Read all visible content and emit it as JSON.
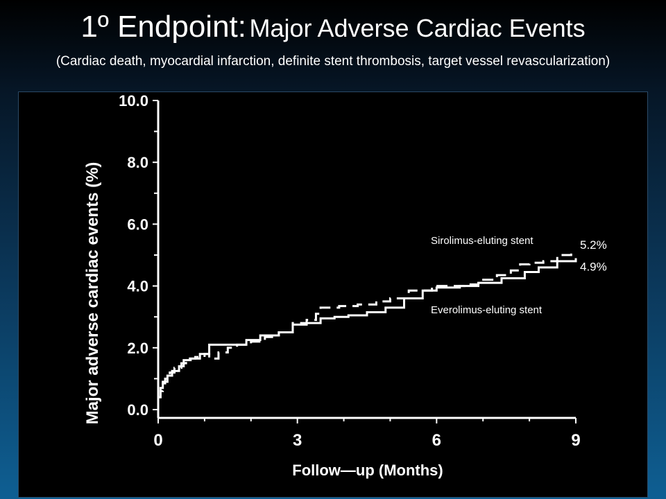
{
  "header": {
    "title_main": "1º Endpoint:",
    "title_rest": "Major Adverse Cardiac Events",
    "subtitle": "(Cardiac death, myocardial infarction, definite stent thrombosis, target vessel revascularization)"
  },
  "chart_data": {
    "type": "line",
    "xlabel": "Follow—up (Months)",
    "ylabel": "Major adverse cardiac events (%)",
    "xlim": [
      0,
      9
    ],
    "ylim": [
      0,
      10
    ],
    "x_ticks": [
      "0",
      "3",
      "6",
      "9"
    ],
    "y_ticks": [
      "0.0",
      "2.0",
      "4.0",
      "6.0",
      "8.0",
      "10.0"
    ],
    "series": [
      {
        "name": "Sirolimus-eluting stent",
        "end_label": "5.2%",
        "style": "dashed",
        "color": "#ffffff",
        "points": [
          [
            0,
            0.4
          ],
          [
            0.05,
            0.6
          ],
          [
            0.1,
            0.85
          ],
          [
            0.15,
            1.0
          ],
          [
            0.25,
            1.2
          ],
          [
            0.35,
            1.35
          ],
          [
            0.5,
            1.5
          ],
          [
            0.6,
            1.65
          ],
          [
            0.8,
            1.7
          ],
          [
            1.0,
            1.8
          ],
          [
            1.1,
            1.65
          ],
          [
            1.3,
            1.85
          ],
          [
            1.5,
            2.0
          ],
          [
            1.7,
            2.1
          ],
          [
            2.0,
            2.2
          ],
          [
            2.3,
            2.35
          ],
          [
            2.6,
            2.5
          ],
          [
            2.9,
            2.8
          ],
          [
            3.2,
            2.9
          ],
          [
            3.4,
            3.1
          ],
          [
            3.5,
            3.3
          ],
          [
            3.9,
            3.35
          ],
          [
            4.3,
            3.4
          ],
          [
            4.7,
            3.5
          ],
          [
            5.0,
            3.6
          ],
          [
            5.4,
            3.85
          ],
          [
            5.9,
            4.0
          ],
          [
            6.3,
            4.0
          ],
          [
            6.6,
            4.05
          ],
          [
            6.9,
            4.2
          ],
          [
            7.3,
            4.35
          ],
          [
            7.6,
            4.5
          ],
          [
            7.8,
            4.7
          ],
          [
            8.0,
            4.75
          ],
          [
            8.3,
            4.8
          ],
          [
            8.6,
            5.0
          ],
          [
            8.9,
            5.2
          ]
        ]
      },
      {
        "name": "Everolimus-eluting stent",
        "end_label": "4.9%",
        "style": "solid",
        "color": "#ffffff",
        "points": [
          [
            0,
            0.4
          ],
          [
            0.05,
            0.7
          ],
          [
            0.1,
            0.9
          ],
          [
            0.2,
            1.1
          ],
          [
            0.3,
            1.25
          ],
          [
            0.45,
            1.4
          ],
          [
            0.55,
            1.6
          ],
          [
            0.7,
            1.65
          ],
          [
            0.9,
            1.8
          ],
          [
            1.1,
            2.1
          ],
          [
            1.3,
            2.1
          ],
          [
            1.7,
            2.1
          ],
          [
            1.9,
            2.25
          ],
          [
            2.2,
            2.4
          ],
          [
            2.6,
            2.5
          ],
          [
            2.9,
            2.75
          ],
          [
            3.2,
            2.8
          ],
          [
            3.5,
            2.95
          ],
          [
            3.8,
            3.0
          ],
          [
            4.1,
            3.05
          ],
          [
            4.5,
            3.15
          ],
          [
            4.9,
            3.3
          ],
          [
            5.3,
            3.6
          ],
          [
            5.7,
            3.85
          ],
          [
            6.0,
            3.95
          ],
          [
            6.5,
            4.0
          ],
          [
            6.9,
            4.1
          ],
          [
            7.4,
            4.25
          ],
          [
            7.9,
            4.45
          ],
          [
            8.2,
            4.6
          ],
          [
            8.6,
            4.8
          ],
          [
            9.0,
            4.9
          ]
        ]
      }
    ],
    "grid": false,
    "legend": "inline labels at right"
  }
}
